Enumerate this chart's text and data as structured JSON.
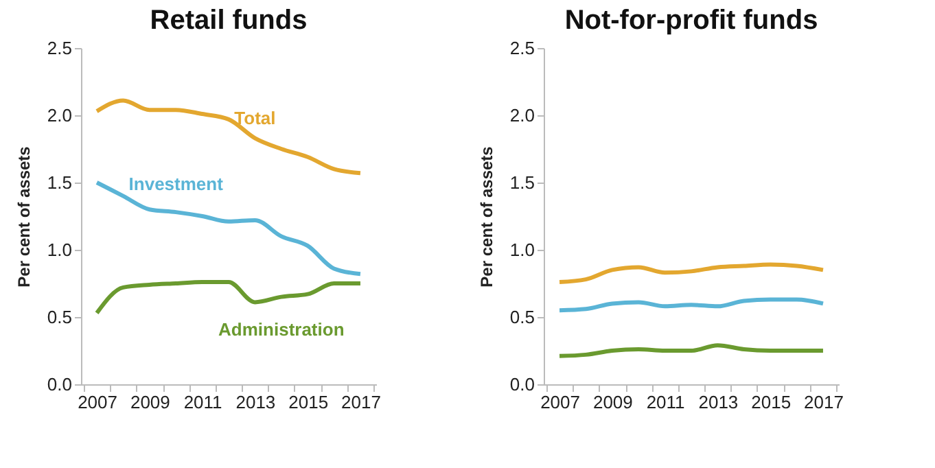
{
  "chart_data": [
    {
      "type": "line",
      "title": "Retail funds",
      "ylabel": "Per cent of assets",
      "categories": [
        "2007",
        null,
        "2009",
        null,
        "2011",
        null,
        "2013",
        null,
        "2015",
        null,
        "2017"
      ],
      "ylim": [
        0,
        2.5
      ],
      "yticks": [
        {
          "value": 0,
          "label": "0.0"
        },
        {
          "value": 0.5,
          "label": "0.5"
        },
        {
          "value": 1,
          "label": "1.0"
        },
        {
          "value": 1.5,
          "label": "1.5"
        },
        {
          "value": 2,
          "label": "2.0"
        },
        {
          "value": 2.5,
          "label": "2.5"
        }
      ],
      "grid": false,
      "series": [
        {
          "name": "Total",
          "color": "#e3a72f",
          "values": [
            2.03,
            2.11,
            2.04,
            2.04,
            2.01,
            1.97,
            1.83,
            1.75,
            1.69,
            1.6,
            1.57
          ]
        },
        {
          "name": "Investment",
          "color": "#5ab4d6",
          "values": [
            1.5,
            1.4,
            1.3,
            1.28,
            1.25,
            1.21,
            1.22,
            1.1,
            1.03,
            0.86,
            0.82
          ]
        },
        {
          "name": "Administration",
          "color": "#6a9a2f",
          "values": [
            0.53,
            0.72,
            0.74,
            0.75,
            0.76,
            0.76,
            0.61,
            0.65,
            0.67,
            0.75,
            0.75
          ]
        }
      ]
    },
    {
      "type": "line",
      "title": "Not-for-profit funds",
      "ylabel": "Per cent of assets",
      "categories": [
        "2007",
        null,
        "2009",
        null,
        "2011",
        null,
        "2013",
        null,
        "2015",
        null,
        "2017"
      ],
      "ylim": [
        0,
        2.5
      ],
      "yticks": [
        {
          "value": 0,
          "label": "0.0"
        },
        {
          "value": 0.5,
          "label": "0.5"
        },
        {
          "value": 1,
          "label": "1.0"
        },
        {
          "value": 1.5,
          "label": "1.5"
        },
        {
          "value": 2,
          "label": "2.0"
        },
        {
          "value": 2.5,
          "label": "2.5"
        }
      ],
      "grid": false,
      "series": [
        {
          "color": "#e3a72f",
          "values": [
            0.76,
            0.78,
            0.85,
            0.87,
            0.83,
            0.84,
            0.87,
            0.88,
            0.89,
            0.88,
            0.85
          ]
        },
        {
          "color": "#5ab4d6",
          "values": [
            0.55,
            0.56,
            0.6,
            0.61,
            0.58,
            0.59,
            0.58,
            0.62,
            0.63,
            0.63,
            0.6
          ]
        },
        {
          "color": "#6a9a2f",
          "values": [
            0.21,
            0.22,
            0.25,
            0.26,
            0.25,
            0.25,
            0.29,
            0.26,
            0.25,
            0.25,
            0.25
          ]
        }
      ]
    }
  ]
}
